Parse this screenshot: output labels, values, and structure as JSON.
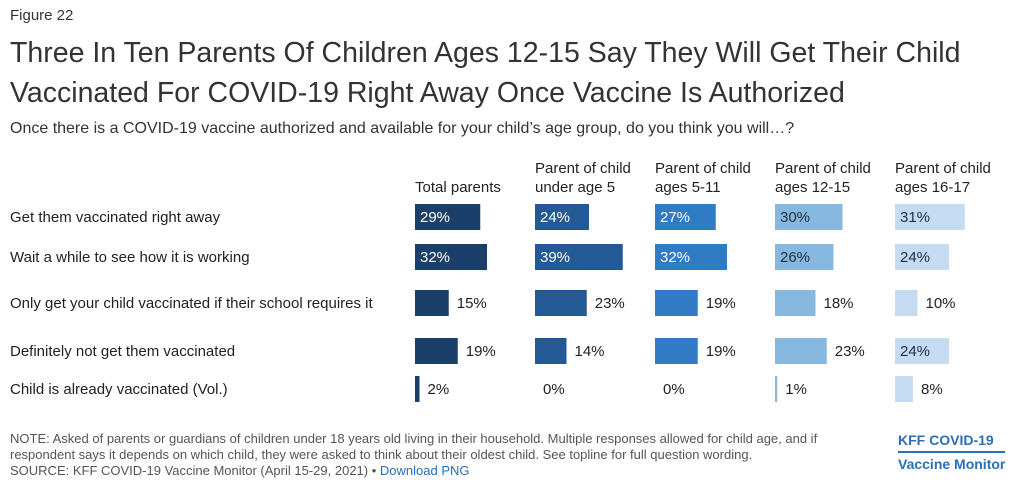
{
  "figure_label": "Figure 22",
  "title": "Three In Ten Parents Of Children Ages 12-15 Say They Will Get Their Child Vaccinated For COVID-19 Right Away Once Vaccine Is Authorized",
  "subtitle": "Once there is a COVID-19 vaccine authorized and available for your child’s age group, do you think you will…?",
  "colors": {
    "total": "#1b3f6b",
    "under5": "#235a96",
    "ages5_11": "#2f7bc4",
    "ages12_15": "#86b8e0",
    "ages16_17": "#c4dbf1"
  },
  "chart_data": {
    "type": "bar",
    "categories": [
      "Get them vaccinated right away",
      "Wait a while to see how it is working",
      "Only get your child vaccinated if their school requires it",
      "Definitely not get them vaccinated",
      "Child is already vaccinated (Vol.)"
    ],
    "series": [
      {
        "name": "Total parents",
        "values": [
          29,
          32,
          15,
          19,
          2
        ]
      },
      {
        "name": "Parent of child under age 5",
        "values": [
          24,
          39,
          23,
          14,
          0
        ]
      },
      {
        "name": "Parent of child ages 5-11",
        "values": [
          27,
          32,
          19,
          19,
          0
        ]
      },
      {
        "name": "Parent of child ages 12-15",
        "values": [
          30,
          26,
          18,
          23,
          1
        ]
      },
      {
        "name": "Parent of child ages 16-17",
        "values": [
          31,
          24,
          10,
          24,
          8
        ]
      }
    ],
    "value_suffix": "%"
  },
  "note": "NOTE: Asked of parents or guardians of children under 18 years old living in their household. Multiple responses allowed for child age, and if respondent says it depends on which child, they were asked to think about their oldest child. See topline for full question wording.",
  "source": "SOURCE: KFF COVID-19 Vaccine Monitor (April 15-29, 2021) •",
  "download_link": "Download PNG",
  "brand": {
    "line1": "KFF COVID-19",
    "line2": "Vaccine Monitor"
  }
}
